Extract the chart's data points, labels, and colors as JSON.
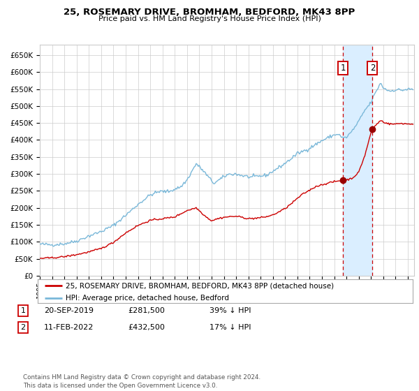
{
  "title": "25, ROSEMARY DRIVE, BROMHAM, BEDFORD, MK43 8PP",
  "subtitle": "Price paid vs. HM Land Registry's House Price Index (HPI)",
  "ylim": [
    0,
    680000
  ],
  "yticks": [
    0,
    50000,
    100000,
    150000,
    200000,
    250000,
    300000,
    350000,
    400000,
    450000,
    500000,
    550000,
    600000,
    650000
  ],
  "ytick_labels": [
    "£0",
    "£50K",
    "£100K",
    "£150K",
    "£200K",
    "£250K",
    "£300K",
    "£350K",
    "£400K",
    "£450K",
    "£500K",
    "£550K",
    "£600K",
    "£650K"
  ],
  "xlim_start": 1995.0,
  "xlim_end": 2025.5,
  "sale1_date": 2019.72,
  "sale1_price": 281500,
  "sale2_date": 2022.12,
  "sale2_price": 432500,
  "legend_line1": "25, ROSEMARY DRIVE, BROMHAM, BEDFORD, MK43 8PP (detached house)",
  "legend_line2": "HPI: Average price, detached house, Bedford",
  "table_row1": [
    "1",
    "20-SEP-2019",
    "£281,500",
    "39% ↓ HPI"
  ],
  "table_row2": [
    "2",
    "11-FEB-2022",
    "£432,500",
    "17% ↓ HPI"
  ],
  "footer": "Contains HM Land Registry data © Crown copyright and database right 2024.\nThis data is licensed under the Open Government Licence v3.0.",
  "hpi_color": "#7ab8d9",
  "price_color": "#cc0000",
  "bg_color": "#ffffff",
  "grid_color": "#cccccc",
  "highlight_color": "#daeeff",
  "sale_marker_color": "#990000",
  "label_box_color": "#cc0000"
}
